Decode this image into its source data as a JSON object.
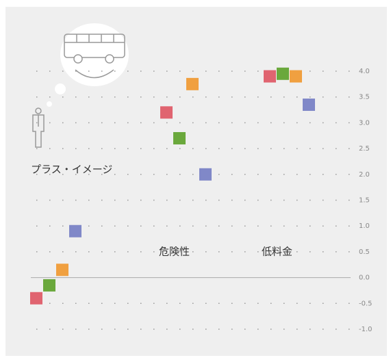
{
  "chart_data": {
    "type": "scatter",
    "categories": [
      "プラス・イメージ",
      "危険性",
      "低料金"
    ],
    "series": [
      {
        "color": "#e06470",
        "values": [
          -0.4,
          3.2,
          3.9
        ]
      },
      {
        "color": "#6aa83c",
        "values": [
          -0.15,
          2.7,
          3.95
        ]
      },
      {
        "color": "#f0a040",
        "values": [
          0.15,
          3.75,
          3.9
        ]
      },
      {
        "color": "#8088c8",
        "values": [
          0.9,
          2.0,
          3.35
        ]
      }
    ],
    "ylim": [
      -1.0,
      4.0
    ],
    "yticks": [
      {
        "value": 4,
        "label": "4.0"
      },
      3.5,
      {
        "value": 3,
        "label": "3.0"
      },
      2.5,
      {
        "value": 2,
        "label": "2.0"
      },
      1.5,
      {
        "value": 1,
        "label": "1.0"
      },
      0.5,
      {
        "value": 0,
        "label": "0.0"
      },
      -0.5,
      {
        "value": -1,
        "label": "-1.0"
      }
    ],
    "grid": true
  }
}
